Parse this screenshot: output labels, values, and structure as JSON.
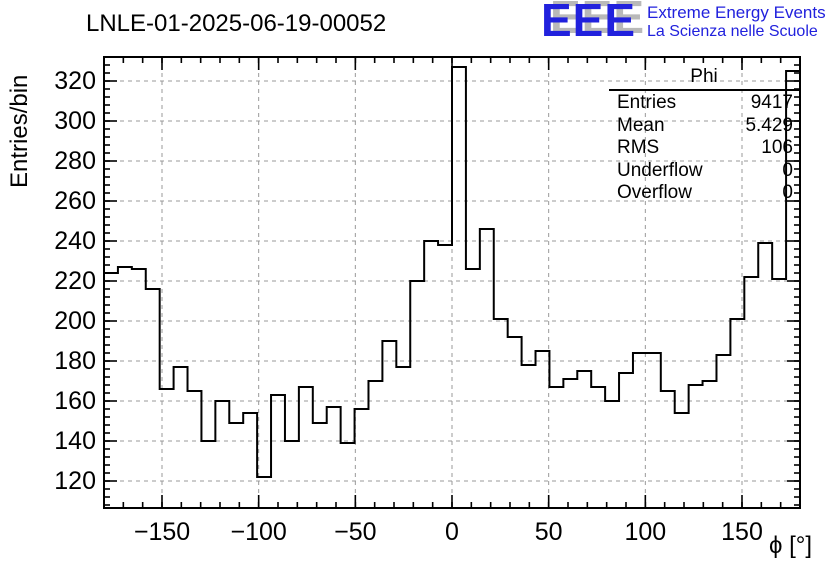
{
  "page": {
    "background": "#ffffff"
  },
  "header": {
    "title": "LNLE-01-2025-06-19-00052",
    "logo": {
      "acronym": "EEE",
      "line1": "Extreme Energy Events",
      "line2": "La Scienza nelle Scuole",
      "color": "#2121dd",
      "shadow_color": "#b9b9b9"
    }
  },
  "stats": {
    "title": "Phi",
    "rows": [
      {
        "label": "Entries",
        "value": "9417"
      },
      {
        "label": "Mean",
        "value": "5.429"
      },
      {
        "label": "RMS",
        "value": "106"
      },
      {
        "label": "Underflow",
        "value": "0"
      },
      {
        "label": "Overflow",
        "value": "0"
      }
    ]
  },
  "chart_data": {
    "type": "bar",
    "style": "step-outline-histogram",
    "title": "LNLE-01-2025-06-19-00052",
    "xlabel": "ϕ [°]",
    "ylabel": "Entries/bin",
    "bins": {
      "start": -180,
      "width": 7.2,
      "count": 50
    },
    "values": [
      224,
      227,
      226,
      216,
      166,
      177,
      165,
      140,
      160,
      149,
      154,
      122,
      163,
      140,
      167,
      149,
      157,
      139,
      156,
      170,
      190,
      177,
      220,
      240,
      238,
      327,
      226,
      246,
      201,
      192,
      178,
      185,
      167,
      171,
      175,
      167,
      160,
      174,
      184,
      184,
      165,
      154,
      168,
      170,
      183,
      201,
      222,
      239,
      221,
      325
    ],
    "xlim": [
      -180,
      180
    ],
    "ylim": [
      106.5,
      332
    ],
    "xticks": [
      -150,
      -100,
      -50,
      0,
      50,
      100,
      150
    ],
    "yticks": [
      120,
      140,
      160,
      180,
      200,
      220,
      240,
      260,
      280,
      300,
      320
    ],
    "x_minor_step": 10,
    "y_minor_step": 4,
    "grid": true,
    "grid_style": "dashed",
    "legend_position": "none",
    "line_color": "#000000",
    "grid_color": "#999999"
  }
}
